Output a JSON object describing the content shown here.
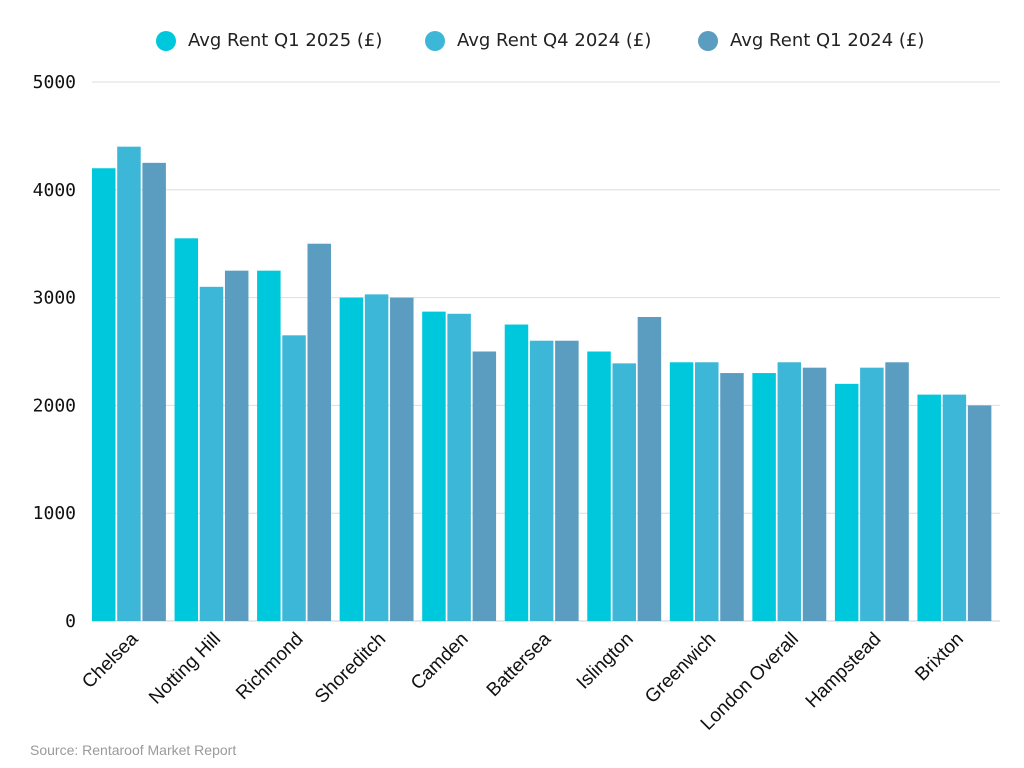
{
  "chart_data": {
    "type": "bar",
    "categories": [
      "Chelsea",
      "Notting Hill",
      "Richmond",
      "Shoreditch",
      "Camden",
      "Battersea",
      "Islington",
      "Greenwich",
      "London Overall",
      "Hampstead",
      "Brixton"
    ],
    "series": [
      {
        "name": "Avg Rent Q1 2025 (£)",
        "color": "#00C8DC",
        "values": [
          4200,
          3550,
          3250,
          3000,
          2870,
          2750,
          2500,
          2400,
          2300,
          2200,
          2100
        ]
      },
      {
        "name": "Avg Rent Q4 2024 (£)",
        "color": "#3DB7D8",
        "values": [
          4400,
          3100,
          2650,
          3030,
          2850,
          2600,
          2390,
          2400,
          2400,
          2350,
          2100
        ]
      },
      {
        "name": "Avg Rent Q1 2024 (£)",
        "color": "#5A9DC0",
        "values": [
          4250,
          3250,
          3500,
          3000,
          2500,
          2600,
          2820,
          2300,
          2350,
          2400,
          2000
        ]
      }
    ],
    "yticks": [
      0,
      1000,
      2000,
      3000,
      4000,
      5000
    ],
    "ylim": [
      0,
      5000
    ],
    "grid": true,
    "legend_position": "top"
  },
  "source": "Source: Rentaroof Market Report"
}
